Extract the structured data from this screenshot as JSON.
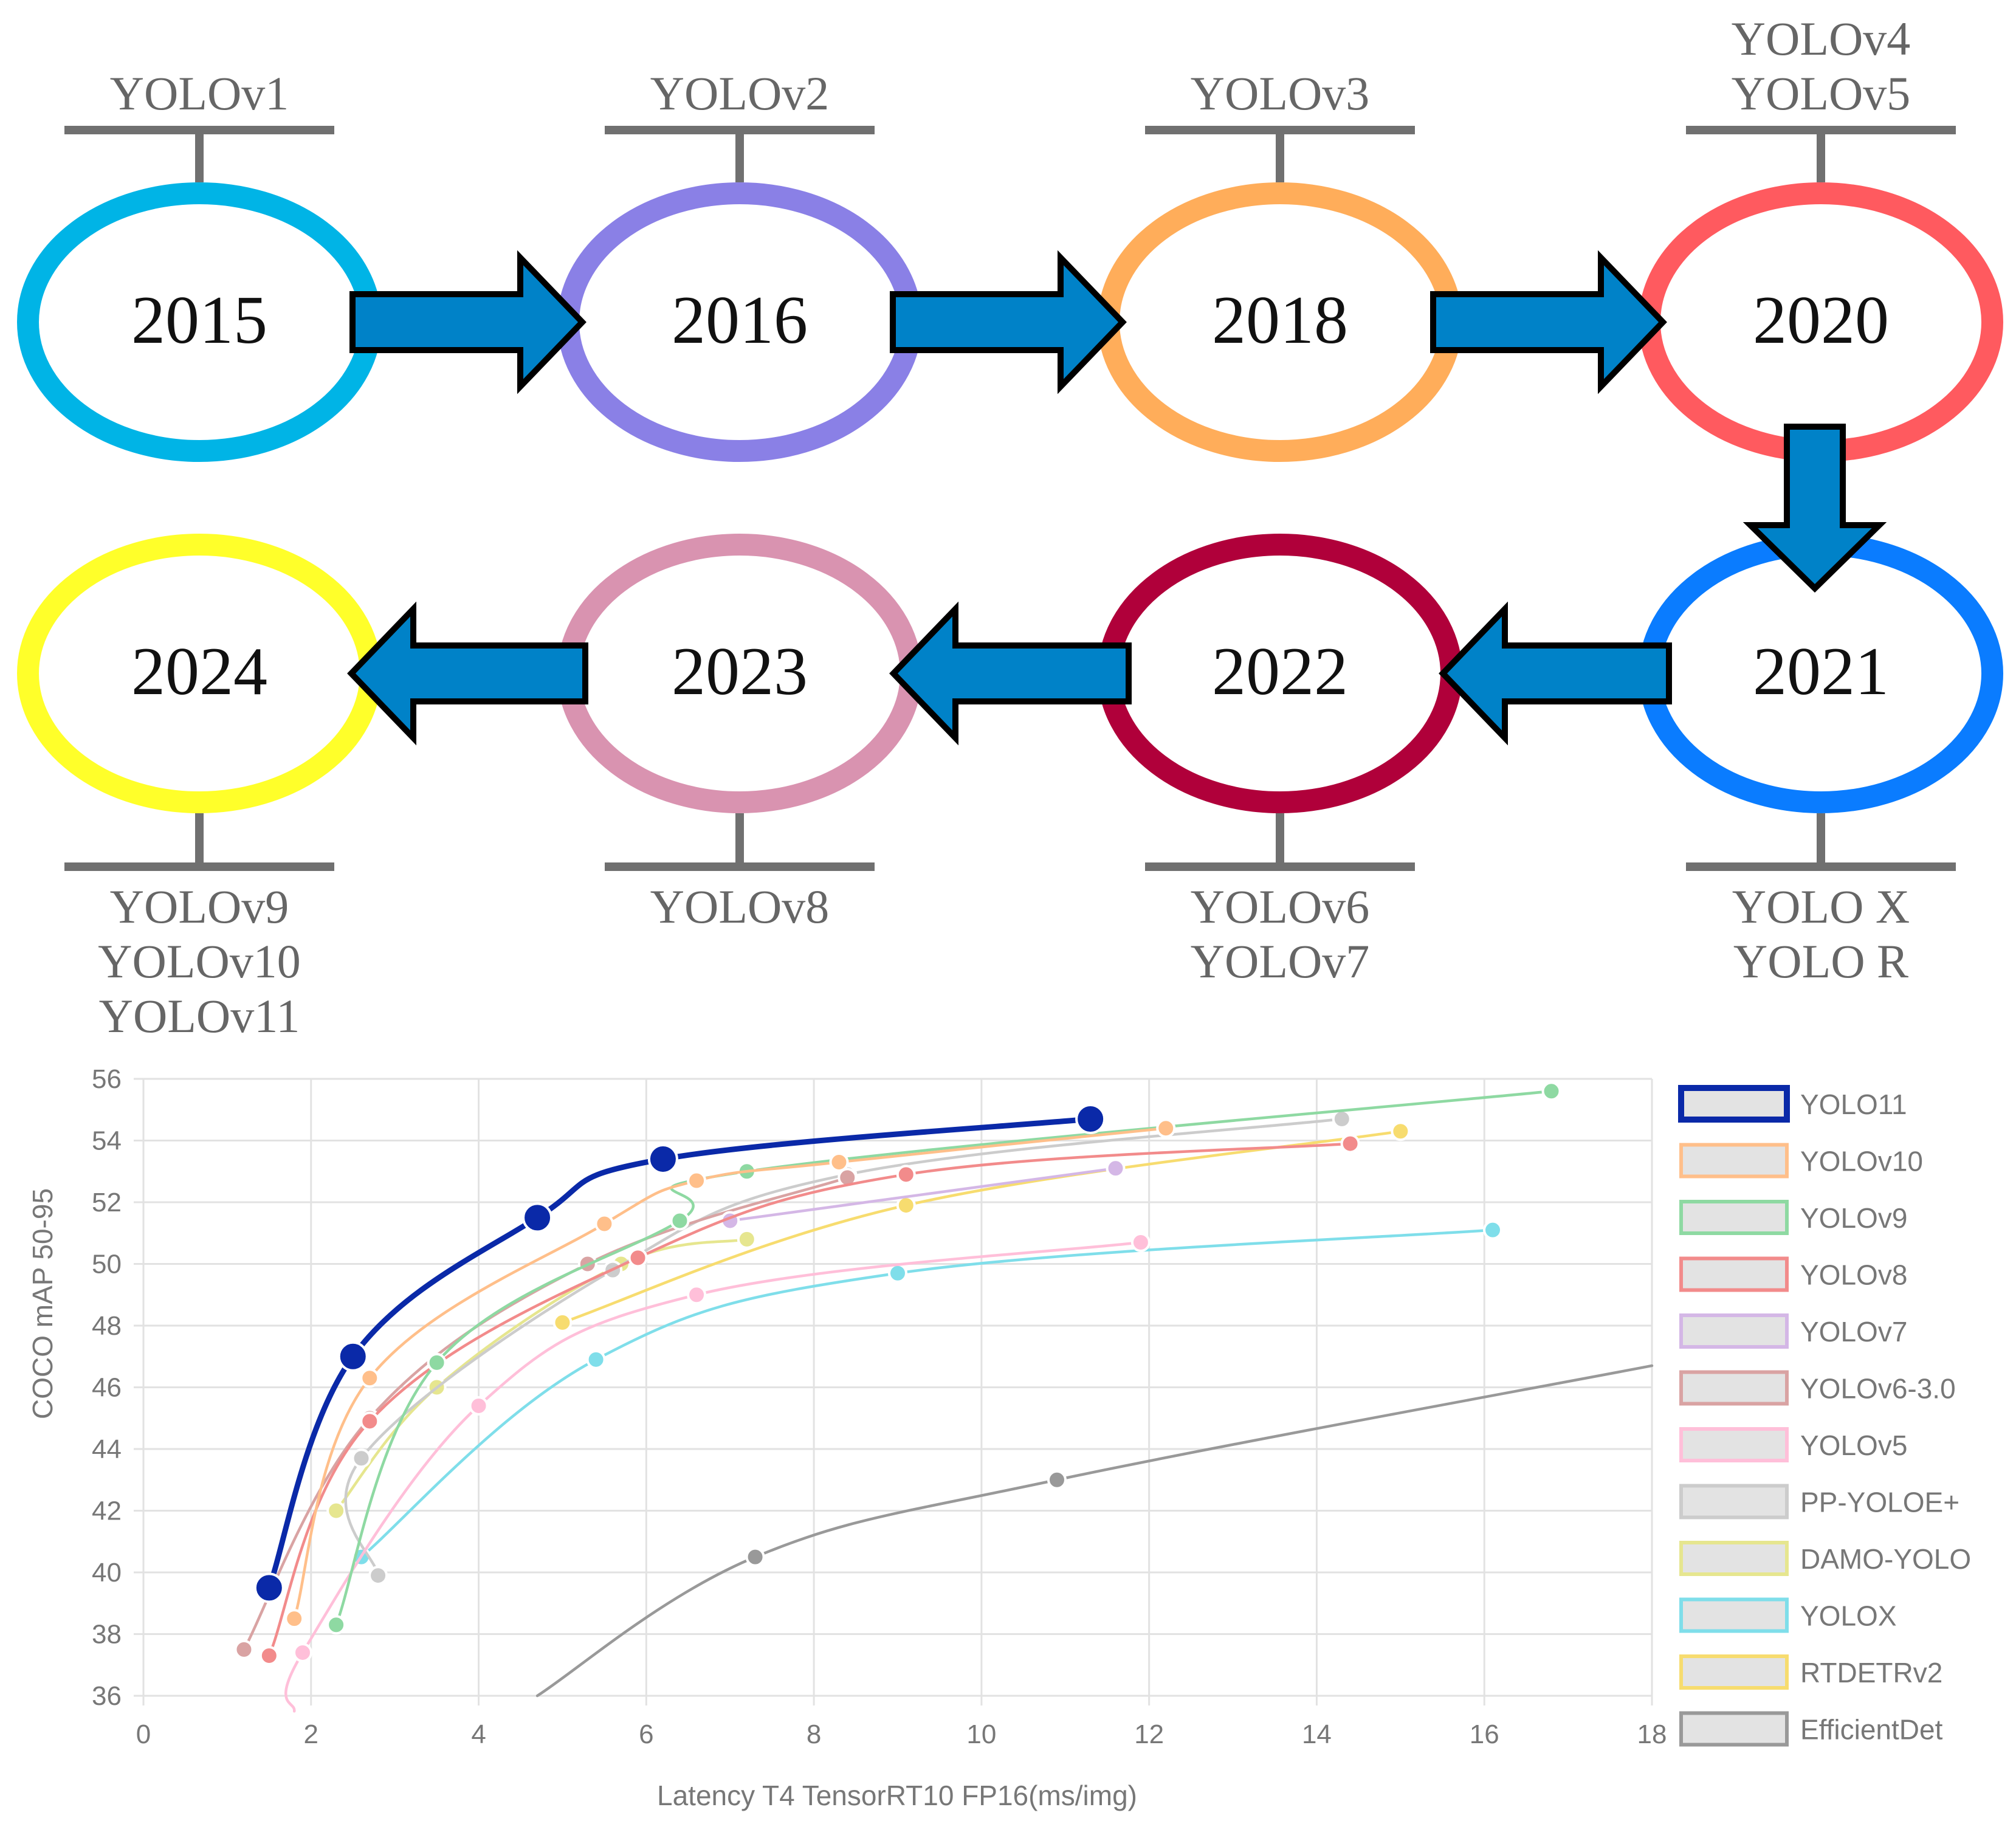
{
  "timeline": {
    "nodes": [
      {
        "year": "2015",
        "models": [
          "YOLOv1"
        ],
        "color": "#00B4E6"
      },
      {
        "year": "2016",
        "models": [
          "YOLOv2"
        ],
        "color": "#8A80E6"
      },
      {
        "year": "2018",
        "models": [
          "YOLOv3"
        ],
        "color": "#FFAD5A"
      },
      {
        "year": "2020",
        "models": [
          "YOLOv4",
          "YOLOv5"
        ],
        "color": "#FF5A5F"
      },
      {
        "year": "2021",
        "models": [
          "YOLO X",
          "YOLO R"
        ],
        "color": "#0A7CFF"
      },
      {
        "year": "2022",
        "models": [
          "YOLOv6",
          "YOLOv7"
        ],
        "color": "#B0003A"
      },
      {
        "year": "2023",
        "models": [
          "YOLOv8"
        ],
        "color": "#D993B0"
      },
      {
        "year": "2024",
        "models": [
          "YOLOv9",
          "YOLOv10",
          "YOLOv11"
        ],
        "color": "#FFFF2A"
      }
    ],
    "arrow_color": "#0082C8"
  },
  "chart_data": {
    "type": "line",
    "title": "",
    "xlabel": "Latency T4 TensorRT10 FP16(ms/img)",
    "ylabel": "COCO mAP 50-95",
    "xlim": [
      0,
      18
    ],
    "ylim": [
      36,
      56
    ],
    "xticks": [
      "0",
      "2",
      "4",
      "6",
      "8",
      "10",
      "12",
      "14",
      "16",
      "18"
    ],
    "yticks": [
      "36",
      "38",
      "40",
      "42",
      "44",
      "46",
      "48",
      "50",
      "52",
      "54",
      "56"
    ],
    "grid": true,
    "legend_position": "right",
    "series": [
      {
        "name": "YOLO11",
        "color": "#0A29A8",
        "highlight": true,
        "x": [
          1.5,
          2.5,
          4.7,
          6.2,
          11.3
        ],
        "y": [
          39.5,
          47.0,
          51.5,
          53.4,
          54.7
        ]
      },
      {
        "name": "YOLOv10",
        "color": "#FFBF8A",
        "x": [
          1.8,
          2.7,
          5.5,
          6.6,
          8.3,
          12.2
        ],
        "y": [
          38.5,
          46.3,
          51.3,
          52.7,
          53.3,
          54.4
        ]
      },
      {
        "name": "YOLOv9",
        "color": "#8ED9A2",
        "x": [
          2.3,
          3.5,
          6.4,
          7.2,
          16.8
        ],
        "y": [
          38.3,
          46.8,
          51.4,
          53.0,
          55.6
        ]
      },
      {
        "name": "YOLOv8",
        "color": "#F28B8B",
        "x": [
          1.5,
          2.7,
          5.9,
          9.1,
          14.4
        ],
        "y": [
          37.3,
          44.9,
          50.2,
          52.9,
          53.9
        ]
      },
      {
        "name": "YOLOv7",
        "color": "#D4B7E6",
        "x": [
          7.0,
          11.6
        ],
        "y": [
          51.4,
          53.1
        ]
      },
      {
        "name": "YOLOv6-3.0",
        "color": "#D9A3A3",
        "x": [
          1.2,
          2.7,
          5.3,
          8.4
        ],
        "y": [
          37.5,
          45.0,
          50.0,
          52.8
        ]
      },
      {
        "name": "YOLOv5",
        "color": "#FFBFD9",
        "x": [
          1.8,
          1.9,
          4.0,
          6.6,
          11.9
        ],
        "y": [
          35.5,
          37.4,
          45.4,
          49.0,
          50.7
        ]
      },
      {
        "name": "PP-YOLOE+",
        "color": "#CCCCCC",
        "x": [
          2.8,
          2.6,
          5.6,
          8.4,
          14.3
        ],
        "y": [
          39.9,
          43.7,
          49.8,
          52.9,
          54.7
        ]
      },
      {
        "name": "DAMO-YOLO",
        "color": "#E6E68F",
        "x": [
          2.3,
          3.5,
          5.7,
          7.2
        ],
        "y": [
          42.0,
          46.0,
          50.0,
          50.8
        ]
      },
      {
        "name": "YOLOX",
        "color": "#7FDEEA",
        "x": [
          2.6,
          5.4,
          9.0,
          16.1
        ],
        "y": [
          40.5,
          46.9,
          49.7,
          51.1
        ]
      },
      {
        "name": "RTDETRv2",
        "color": "#F7DC6F",
        "x": [
          5.0,
          9.1,
          15.0
        ],
        "y": [
          48.1,
          51.9,
          54.3
        ]
      },
      {
        "name": "EfficientDet",
        "color": "#999999",
        "x": [
          4.7,
          7.3,
          10.9,
          18.0
        ],
        "y": [
          36.0,
          40.5,
          43.0,
          46.7
        ]
      }
    ]
  }
}
